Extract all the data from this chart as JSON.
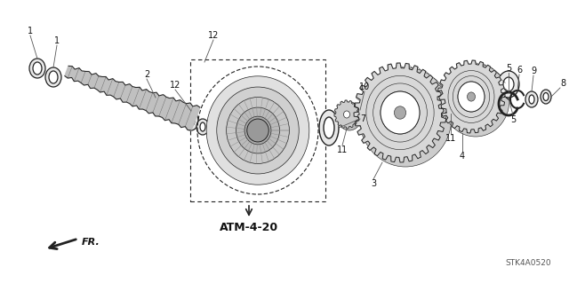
{
  "background_color": "#ffffff",
  "diagram_code": "STK4A0520",
  "atm_label": "ATM-4-20",
  "fr_label": "FR.",
  "line_color": "#222222",
  "text_color": "#111111",
  "label_fontsize": 7,
  "atm_fontsize": 9,
  "code_fontsize": 6.5
}
